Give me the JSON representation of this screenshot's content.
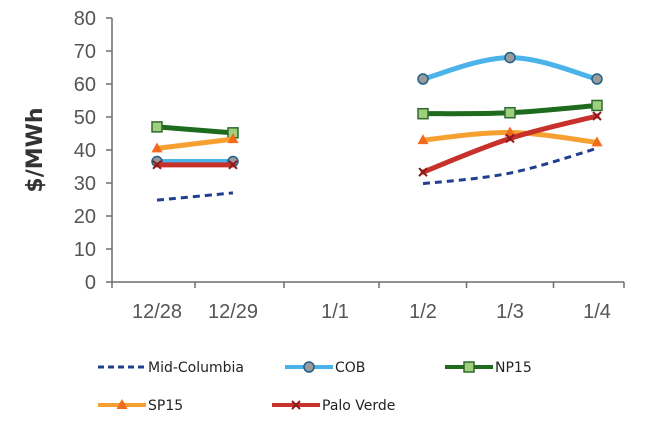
{
  "chart_data": {
    "type": "line",
    "categories": [
      "12/28",
      "12/29",
      "1/1",
      "1/2",
      "1/3",
      "1/4"
    ],
    "ylabel": "$/MWh",
    "xlabel": "",
    "ylim": [
      0,
      80
    ],
    "yticks": [
      0,
      10,
      20,
      30,
      40,
      50,
      60,
      70,
      80
    ],
    "grid": false,
    "legend_position": "bottom",
    "series": [
      {
        "name": "Mid-Columbia",
        "color": "#1f3f8f",
        "style": "dashed",
        "marker": "none",
        "values": [
          24.8,
          27,
          null,
          29.8,
          33,
          40.5
        ]
      },
      {
        "name": "COB",
        "color": "#4bb3ea",
        "style": "solid",
        "marker": "circle",
        "values": [
          36.5,
          36.5,
          null,
          61.5,
          68,
          61.5
        ]
      },
      {
        "name": "NP15",
        "color": "#1e6b1e",
        "style": "solid",
        "marker": "square",
        "values": [
          47,
          45.2,
          null,
          51,
          51.3,
          53.5
        ]
      },
      {
        "name": "SP15",
        "color": "#f5a030",
        "style": "solid",
        "marker": "triangle",
        "values": [
          40.5,
          43.3,
          null,
          43,
          45.3,
          42.3
        ]
      },
      {
        "name": "Palo Verde",
        "color": "#c8302b",
        "style": "solid",
        "marker": "cross",
        "values": [
          35.5,
          35.5,
          null,
          33.3,
          43.5,
          50.3
        ]
      }
    ]
  }
}
